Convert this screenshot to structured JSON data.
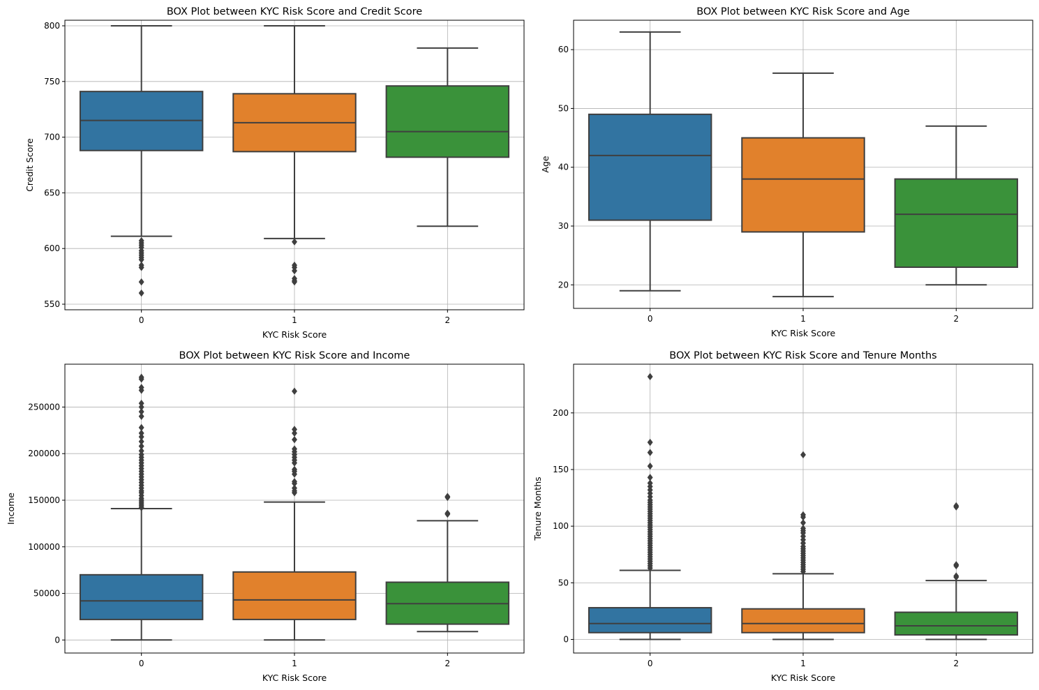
{
  "chart_data": [
    {
      "type": "box",
      "title": "BOX Plot between KYC Risk Score and Credit Score",
      "xlabel": "KYC Risk Score",
      "ylabel": "Credit Score",
      "categories": [
        "0",
        "1",
        "2"
      ],
      "ylim": [
        545,
        805
      ],
      "yticks": [
        550,
        600,
        650,
        700,
        750,
        800
      ],
      "ytick_labels": [
        "550",
        "600",
        "650",
        "700",
        "750",
        "800"
      ],
      "grid": true,
      "colors": [
        "#3274a1",
        "#e1812c",
        "#3a923a"
      ],
      "boxes": [
        {
          "category": "0",
          "whisker_low": 611,
          "q1": 688,
          "median": 715,
          "q3": 741,
          "whisker_high": 800,
          "outliers": [
            607,
            605,
            603,
            601,
            598,
            596,
            594,
            592,
            590,
            585,
            583,
            570,
            560
          ]
        },
        {
          "category": "1",
          "whisker_low": 609,
          "q1": 687,
          "median": 713,
          "q3": 739,
          "whisker_high": 800,
          "outliers": [
            606,
            585,
            583,
            580,
            573,
            571,
            570
          ]
        },
        {
          "category": "2",
          "whisker_low": 620,
          "q1": 682,
          "median": 705,
          "q3": 746,
          "whisker_high": 780,
          "outliers": []
        }
      ]
    },
    {
      "type": "box",
      "title": "BOX Plot between KYC Risk Score and Age",
      "xlabel": "KYC Risk Score",
      "ylabel": "Age",
      "categories": [
        "0",
        "1",
        "2"
      ],
      "ylim": [
        16,
        65
      ],
      "yticks": [
        20,
        30,
        40,
        50,
        60
      ],
      "ytick_labels": [
        "20",
        "30",
        "40",
        "50",
        "60"
      ],
      "grid": true,
      "colors": [
        "#3274a1",
        "#e1812c",
        "#3a923a"
      ],
      "boxes": [
        {
          "category": "0",
          "whisker_low": 19,
          "q1": 31,
          "median": 42,
          "q3": 49,
          "whisker_high": 63,
          "outliers": []
        },
        {
          "category": "1",
          "whisker_low": 18,
          "q1": 29,
          "median": 38,
          "q3": 45,
          "whisker_high": 56,
          "outliers": []
        },
        {
          "category": "2",
          "whisker_low": 20,
          "q1": 23,
          "median": 32,
          "q3": 38,
          "whisker_high": 47,
          "outliers": []
        }
      ]
    },
    {
      "type": "box",
      "title": "BOX Plot between KYC Risk Score and Income",
      "xlabel": "KYC Risk Score",
      "ylabel": "Income",
      "categories": [
        "0",
        "1",
        "2"
      ],
      "ylim": [
        -14000,
        296000
      ],
      "yticks": [
        0,
        50000,
        100000,
        150000,
        200000,
        250000
      ],
      "ytick_labels": [
        "0",
        "50000",
        "100000",
        "150000",
        "200000",
        "250000"
      ],
      "grid": true,
      "colors": [
        "#3274a1",
        "#e1812c",
        "#3a923a"
      ],
      "boxes": [
        {
          "category": "0",
          "whisker_low": 0,
          "q1": 22000,
          "median": 42000,
          "q3": 70000,
          "whisker_high": 141000,
          "outliers": [
            142000,
            144000,
            146000,
            148000,
            150000,
            152000,
            155000,
            158000,
            160000,
            163000,
            166000,
            169000,
            172000,
            175000,
            178000,
            181000,
            184000,
            187000,
            190000,
            193000,
            196000,
            199000,
            203000,
            208000,
            213000,
            218000,
            222000,
            228000,
            240000,
            245000,
            250000,
            254000,
            268000,
            271000,
            280000,
            282000
          ]
        },
        {
          "category": "1",
          "whisker_low": 0,
          "q1": 22000,
          "median": 43000,
          "q3": 73000,
          "whisker_high": 148000,
          "outliers": [
            158000,
            160000,
            163000,
            168000,
            170000,
            178000,
            181000,
            183000,
            190000,
            193000,
            196000,
            199000,
            202000,
            205000,
            215000,
            222000,
            226000,
            267000
          ]
        },
        {
          "category": "2",
          "whisker_low": 9000,
          "q1": 17000,
          "median": 39000,
          "q3": 62000,
          "whisker_high": 128000,
          "outliers": [
            135000,
            136000,
            153000,
            154000
          ]
        }
      ]
    },
    {
      "type": "box",
      "title": "BOX Plot between KYC Risk Score and Tenure Months",
      "xlabel": "KYC Risk Score",
      "ylabel": "Tenure Months",
      "categories": [
        "0",
        "1",
        "2"
      ],
      "ylim": [
        -12,
        243
      ],
      "yticks": [
        0,
        50,
        100,
        150,
        200
      ],
      "ytick_labels": [
        "0",
        "50",
        "100",
        "150",
        "200"
      ],
      "grid": true,
      "colors": [
        "#3274a1",
        "#e1812c",
        "#3a923a"
      ],
      "boxes": [
        {
          "category": "0",
          "whisker_low": 0,
          "q1": 6,
          "median": 14,
          "q3": 28,
          "whisker_high": 61,
          "outliers": [
            63,
            65,
            67,
            69,
            71,
            73,
            75,
            77,
            79,
            81,
            83,
            85,
            87,
            89,
            91,
            93,
            95,
            97,
            99,
            101,
            103,
            105,
            107,
            109,
            111,
            113,
            115,
            117,
            119,
            121,
            123,
            126,
            129,
            132,
            135,
            138,
            143,
            153,
            165,
            174,
            232
          ]
        },
        {
          "category": "1",
          "whisker_low": 0,
          "q1": 6,
          "median": 14,
          "q3": 27,
          "whisker_high": 58,
          "outliers": [
            60,
            62,
            64,
            66,
            68,
            70,
            72,
            74,
            76,
            78,
            80,
            82,
            85,
            88,
            91,
            94,
            96,
            98,
            103,
            108,
            110,
            163
          ]
        },
        {
          "category": "2",
          "whisker_low": 0,
          "q1": 4,
          "median": 12,
          "q3": 24,
          "whisker_high": 52,
          "outliers": [
            55,
            56,
            65,
            66,
            117,
            118
          ]
        }
      ]
    }
  ]
}
